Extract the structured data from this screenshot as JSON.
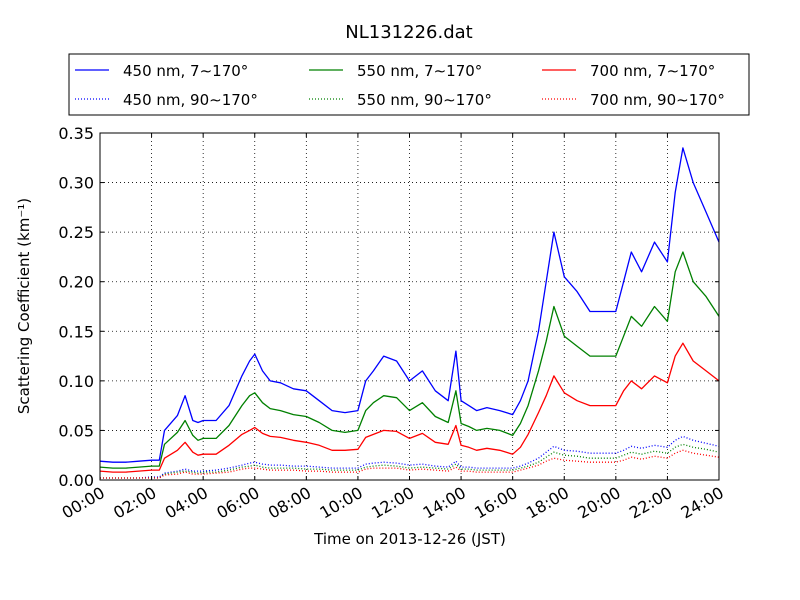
{
  "chart_data": {
    "type": "line",
    "title": "NL131226.dat",
    "xlabel": "Time on 2013-12-26 (JST)",
    "ylabel": "Scattering Coefficient (km⁻¹)",
    "xlim": [
      0,
      24
    ],
    "ylim": [
      0,
      0.35
    ],
    "x_ticks": [
      0,
      2,
      4,
      6,
      8,
      10,
      12,
      14,
      16,
      18,
      20,
      22,
      24
    ],
    "x_tick_labels": [
      "00:00",
      "02:00",
      "04:00",
      "06:00",
      "08:00",
      "10:00",
      "12:00",
      "14:00",
      "16:00",
      "18:00",
      "20:00",
      "22:00",
      "24:00"
    ],
    "y_ticks": [
      0,
      0.05,
      0.1,
      0.15,
      0.2,
      0.25,
      0.3,
      0.35
    ],
    "y_tick_labels": [
      "0.00",
      "0.05",
      "0.10",
      "0.15",
      "0.20",
      "0.25",
      "0.30",
      "0.35"
    ],
    "grid": true,
    "legend_position": "top",
    "x": [
      0,
      0.5,
      1,
      1.5,
      2,
      2.3,
      2.5,
      3,
      3.3,
      3.6,
      3.8,
      4,
      4.5,
      5,
      5.5,
      5.8,
      6,
      6.3,
      6.6,
      7,
      7.5,
      8,
      8.5,
      9,
      9.5,
      10,
      10.3,
      10.6,
      11,
      11.5,
      12,
      12.5,
      13,
      13.5,
      13.8,
      14,
      14.3,
      14.6,
      15,
      15.5,
      16,
      16.3,
      16.6,
      17,
      17.3,
      17.6,
      18,
      18.5,
      19,
      19.5,
      20,
      20.3,
      20.6,
      21,
      21.5,
      22,
      22.3,
      22.6,
      23,
      23.5,
      24
    ],
    "series": [
      {
        "name": "450 nm, 7∼170°",
        "color": "#0000ff",
        "style": "solid",
        "values": [
          0.019,
          0.018,
          0.018,
          0.019,
          0.02,
          0.02,
          0.05,
          0.065,
          0.085,
          0.06,
          0.058,
          0.06,
          0.06,
          0.075,
          0.105,
          0.12,
          0.127,
          0.11,
          0.1,
          0.098,
          0.092,
          0.09,
          0.08,
          0.07,
          0.068,
          0.07,
          0.1,
          0.11,
          0.125,
          0.12,
          0.1,
          0.11,
          0.09,
          0.08,
          0.13,
          0.08,
          0.075,
          0.07,
          0.073,
          0.07,
          0.066,
          0.08,
          0.1,
          0.15,
          0.2,
          0.25,
          0.205,
          0.19,
          0.17,
          0.17,
          0.17,
          0.2,
          0.23,
          0.21,
          0.24,
          0.22,
          0.29,
          0.335,
          0.3,
          0.27,
          0.24
        ]
      },
      {
        "name": "550 nm, 7∼170°",
        "color": "#008000",
        "style": "solid",
        "values": [
          0.013,
          0.012,
          0.012,
          0.013,
          0.014,
          0.014,
          0.036,
          0.048,
          0.06,
          0.045,
          0.04,
          0.042,
          0.042,
          0.055,
          0.075,
          0.085,
          0.088,
          0.078,
          0.072,
          0.07,
          0.066,
          0.064,
          0.058,
          0.05,
          0.048,
          0.05,
          0.07,
          0.078,
          0.085,
          0.083,
          0.07,
          0.078,
          0.064,
          0.058,
          0.09,
          0.057,
          0.054,
          0.05,
          0.052,
          0.05,
          0.045,
          0.057,
          0.075,
          0.11,
          0.14,
          0.175,
          0.145,
          0.135,
          0.125,
          0.125,
          0.125,
          0.145,
          0.165,
          0.155,
          0.175,
          0.16,
          0.21,
          0.23,
          0.2,
          0.185,
          0.165
        ]
      },
      {
        "name": "700 nm, 7∼170°",
        "color": "#ff0000",
        "style": "solid",
        "values": [
          0.009,
          0.008,
          0.008,
          0.009,
          0.01,
          0.01,
          0.022,
          0.03,
          0.038,
          0.028,
          0.025,
          0.026,
          0.026,
          0.035,
          0.046,
          0.05,
          0.053,
          0.047,
          0.044,
          0.043,
          0.04,
          0.038,
          0.035,
          0.03,
          0.03,
          0.031,
          0.043,
          0.046,
          0.05,
          0.049,
          0.042,
          0.047,
          0.038,
          0.036,
          0.055,
          0.035,
          0.033,
          0.03,
          0.032,
          0.03,
          0.026,
          0.033,
          0.046,
          0.068,
          0.085,
          0.105,
          0.088,
          0.08,
          0.075,
          0.075,
          0.075,
          0.09,
          0.1,
          0.092,
          0.105,
          0.098,
          0.125,
          0.138,
          0.12,
          0.11,
          0.1
        ]
      },
      {
        "name": "450 nm, 90∼170°",
        "color": "#0000ff",
        "style": "dotted",
        "values": [
          0.002,
          0.002,
          0.002,
          0.002,
          0.003,
          0.003,
          0.007,
          0.009,
          0.011,
          0.009,
          0.009,
          0.009,
          0.01,
          0.012,
          0.015,
          0.017,
          0.018,
          0.016,
          0.015,
          0.015,
          0.014,
          0.014,
          0.013,
          0.012,
          0.012,
          0.012,
          0.016,
          0.017,
          0.018,
          0.017,
          0.015,
          0.016,
          0.014,
          0.013,
          0.019,
          0.013,
          0.013,
          0.012,
          0.012,
          0.012,
          0.012,
          0.014,
          0.017,
          0.022,
          0.028,
          0.034,
          0.03,
          0.029,
          0.027,
          0.027,
          0.027,
          0.03,
          0.034,
          0.032,
          0.035,
          0.033,
          0.04,
          0.044,
          0.04,
          0.037,
          0.034
        ]
      },
      {
        "name": "550 nm, 90∼170°",
        "color": "#008000",
        "style": "dotted",
        "values": [
          0.002,
          0.002,
          0.002,
          0.002,
          0.002,
          0.002,
          0.006,
          0.008,
          0.009,
          0.008,
          0.007,
          0.008,
          0.008,
          0.01,
          0.013,
          0.014,
          0.015,
          0.013,
          0.012,
          0.012,
          0.012,
          0.011,
          0.011,
          0.01,
          0.01,
          0.01,
          0.013,
          0.014,
          0.015,
          0.014,
          0.012,
          0.013,
          0.012,
          0.011,
          0.016,
          0.011,
          0.011,
          0.01,
          0.01,
          0.01,
          0.01,
          0.012,
          0.014,
          0.018,
          0.023,
          0.028,
          0.025,
          0.024,
          0.022,
          0.022,
          0.022,
          0.025,
          0.028,
          0.026,
          0.029,
          0.027,
          0.033,
          0.036,
          0.033,
          0.031,
          0.028
        ]
      },
      {
        "name": "700 nm, 90∼170°",
        "color": "#ff0000",
        "style": "dotted",
        "values": [
          0.002,
          0.002,
          0.002,
          0.002,
          0.002,
          0.002,
          0.005,
          0.006,
          0.008,
          0.006,
          0.006,
          0.006,
          0.007,
          0.008,
          0.011,
          0.012,
          0.012,
          0.011,
          0.01,
          0.01,
          0.01,
          0.009,
          0.009,
          0.008,
          0.008,
          0.008,
          0.011,
          0.012,
          0.012,
          0.012,
          0.01,
          0.011,
          0.01,
          0.009,
          0.013,
          0.009,
          0.009,
          0.008,
          0.008,
          0.008,
          0.008,
          0.01,
          0.012,
          0.015,
          0.019,
          0.022,
          0.02,
          0.019,
          0.018,
          0.018,
          0.018,
          0.02,
          0.023,
          0.021,
          0.024,
          0.022,
          0.027,
          0.03,
          0.027,
          0.025,
          0.023
        ]
      }
    ]
  }
}
